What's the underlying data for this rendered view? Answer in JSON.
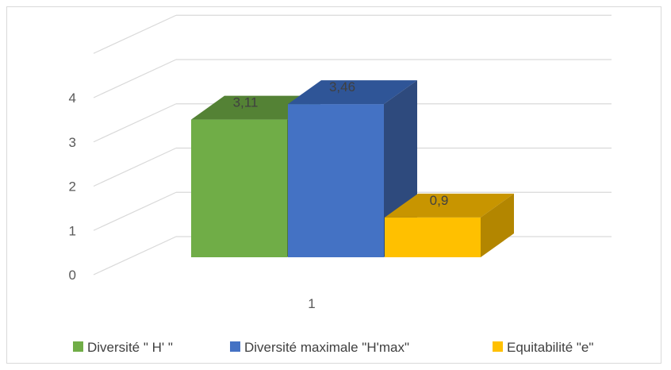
{
  "chart_data": {
    "type": "bar",
    "categories": [
      "1"
    ],
    "series": [
      {
        "name": "Diversité \" H' \"",
        "values": [
          3.11
        ],
        "label": "3,11",
        "color": "#70ad47",
        "top_color": "#548235",
        "side_color": "#4e7a31"
      },
      {
        "name": "Diversité maximale \"H'max\"",
        "values": [
          3.46
        ],
        "label": "3,46",
        "color": "#4472c4",
        "top_color": "#2f5597",
        "side_color": "#2e4a7d"
      },
      {
        "name": "Equitabilité \"e\"",
        "values": [
          0.9
        ],
        "label": "0,9",
        "color": "#ffc000",
        "top_color": "#c89500",
        "side_color": "#b38600"
      }
    ],
    "ylim": [
      0,
      5
    ],
    "yticks": [
      "0",
      "1",
      "2",
      "3",
      "4"
    ],
    "grid": true,
    "legend_position": "bottom",
    "projection": "3d",
    "title": "",
    "xlabel": "",
    "ylabel": ""
  }
}
